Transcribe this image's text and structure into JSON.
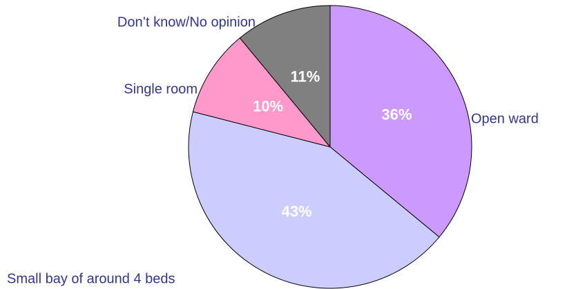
{
  "chart_data": {
    "type": "pie",
    "categories": [
      "Open ward",
      "Small bay of around 4 beds",
      "Single room",
      "Don’t know/No opinion"
    ],
    "values": [
      36,
      43,
      10,
      11
    ],
    "value_labels": [
      "36%",
      "43%",
      "10%",
      "11%"
    ],
    "colors": [
      "#cc99ff",
      "#ccccff",
      "#ff99cc",
      "#808080"
    ]
  }
}
